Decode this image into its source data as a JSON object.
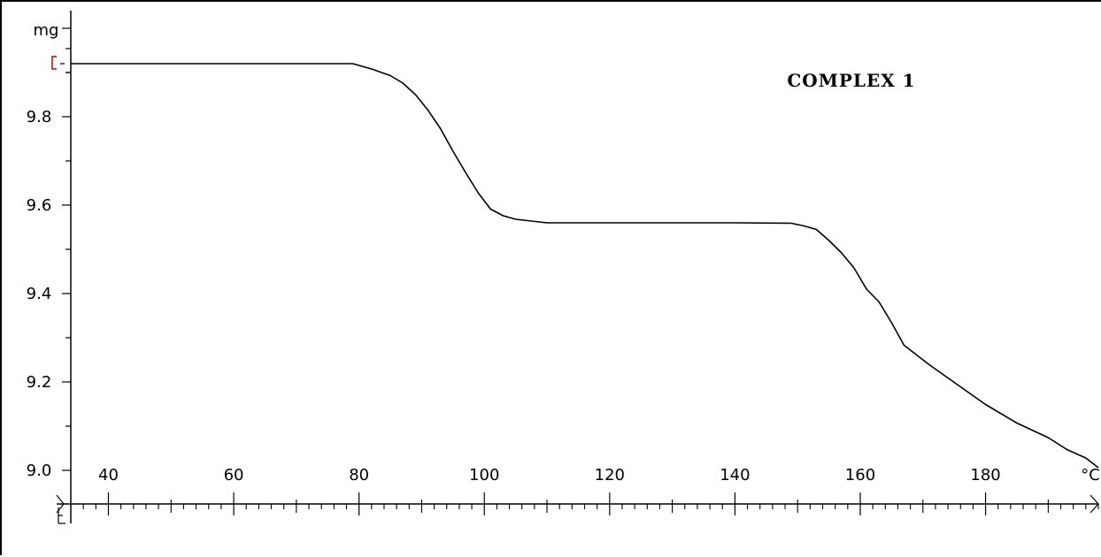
{
  "chart_data": {
    "type": "line",
    "title": "COMPLEX 1",
    "ylabel": "mg",
    "xlabel": "°C",
    "xlim": [
      34,
      198
    ],
    "ylim": [
      9.0,
      9.92
    ],
    "x_ticks": [
      40,
      60,
      80,
      100,
      120,
      140,
      160,
      180
    ],
    "y_ticks": [
      9.0,
      9.2,
      9.4,
      9.6,
      9.8
    ],
    "grid": false,
    "legend": "none",
    "line_color": "#000000",
    "marker_color": "#cc0000",
    "series": [
      {
        "x": [
          34,
          60,
          79,
          82,
          85,
          87,
          89,
          91,
          93,
          95,
          97,
          99,
          101,
          103,
          105,
          110,
          120,
          130,
          140,
          149,
          151,
          153,
          155,
          157,
          159,
          161,
          163,
          165,
          167,
          169,
          171,
          173,
          175,
          177,
          180,
          185,
          190,
          193,
          196,
          198
        ],
        "y": [
          9.92,
          9.92,
          9.92,
          9.908,
          9.893,
          9.876,
          9.85,
          9.815,
          9.773,
          9.722,
          9.674,
          9.628,
          9.591,
          9.576,
          9.568,
          9.56,
          9.56,
          9.56,
          9.56,
          9.559,
          9.553,
          9.545,
          9.52,
          9.492,
          9.458,
          9.41,
          9.381,
          9.334,
          9.283,
          9.261,
          9.239,
          9.219,
          9.199,
          9.179,
          9.149,
          9.107,
          9.074,
          9.047,
          9.028,
          9.006
        ]
      }
    ]
  }
}
